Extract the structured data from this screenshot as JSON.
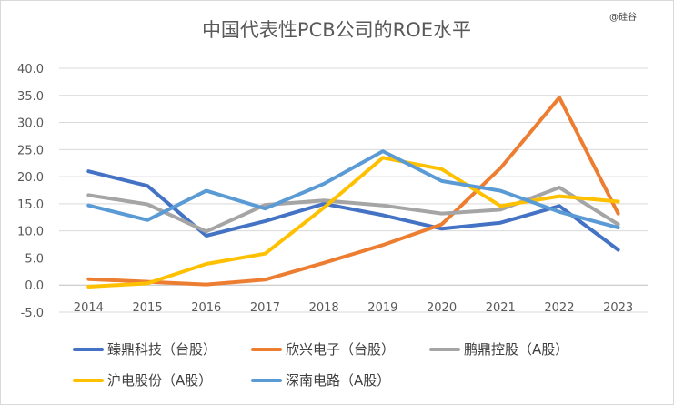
{
  "watermark": "@硅谷",
  "chart_data": {
    "type": "line",
    "title": "中国代表性PCB公司的ROE水平",
    "xlabel": "",
    "ylabel": "",
    "x": [
      "2014",
      "2015",
      "2016",
      "2017",
      "2018",
      "2019",
      "2020",
      "2021",
      "2022",
      "2023"
    ],
    "ylim": [
      -5,
      40
    ],
    "yticks": [
      "-5.0",
      "0.0",
      "5.0",
      "10.0",
      "15.0",
      "20.0",
      "25.0",
      "30.0",
      "35.0",
      "40.0"
    ],
    "grid": true,
    "legend_position": "bottom",
    "series": [
      {
        "name": "臻鼎科技（台股）",
        "color": "#4472c4",
        "values": [
          21.0,
          18.3,
          9.1,
          11.8,
          15.0,
          12.9,
          10.4,
          11.5,
          14.6,
          6.5
        ]
      },
      {
        "name": "欣兴电子（台股）",
        "color": "#ed7d31",
        "values": [
          1.1,
          0.6,
          0.1,
          1.0,
          4.1,
          7.4,
          11.2,
          21.6,
          34.6,
          13.2
        ]
      },
      {
        "name": "鹏鼎控股（A股）",
        "color": "#a5a5a5",
        "values": [
          16.6,
          14.9,
          9.9,
          14.8,
          15.6,
          14.7,
          13.2,
          13.9,
          18.0,
          11.2
        ]
      },
      {
        "name": "沪电股份（A股）",
        "color": "#ffc000",
        "values": [
          -0.3,
          0.3,
          3.9,
          5.8,
          14.3,
          23.5,
          21.4,
          14.6,
          16.4,
          15.4
        ]
      },
      {
        "name": "深南电路（A股）",
        "color": "#5b9bd5",
        "values": [
          14.7,
          12.0,
          17.4,
          14.1,
          18.7,
          24.7,
          19.2,
          17.4,
          13.5,
          10.6
        ]
      }
    ]
  }
}
